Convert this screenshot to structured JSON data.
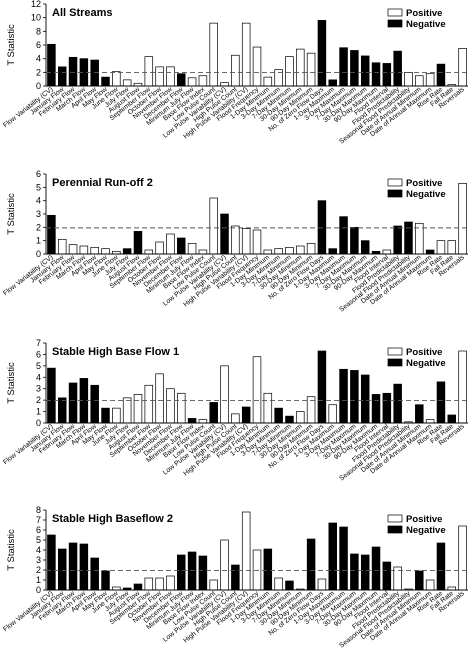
{
  "figure": {
    "ylabel": "T Statistic",
    "legend": {
      "positive": "Positive",
      "negative": "Negative"
    }
  },
  "categories": [
    "Flow Variability (CV)",
    "January Flow",
    "February Flow",
    "March Flow",
    "April Flow",
    "May Flow",
    "June Flow",
    "July Flow",
    "August Flow",
    "September Flow",
    "October Flow",
    "November Flow",
    "December Flow",
    "Minimum July Flow",
    "Base Flow Index",
    "Low Pulse Count",
    "Low Pulse Variability (CV)",
    "High Pulse Count",
    "High Pulse Variability (CV)",
    "Flood Frequency",
    "1-Day Minimum",
    "3-Day Minimum",
    "7-Day Minimum",
    "30-Day Minimum",
    "90-Day Minimum",
    "No. of Zero Flow Days",
    "1-Day Maximum",
    "3-Day Maximum",
    "7-Day Maximum",
    "30-Day Maximum",
    "90-Day Maximum",
    "Flood Interval",
    "Flood Predictability",
    "Seasonal Flood Predictability",
    "Date of Annual Minimum",
    "Date of Annual Maximum",
    "Rise Rate",
    "Fall Rate",
    "Reversals"
  ],
  "chart_data": [
    {
      "type": "bar",
      "title": "All Streams",
      "ylim": [
        0,
        12
      ],
      "yticks": [
        0,
        2,
        4,
        6,
        8,
        10,
        12
      ],
      "threshold": 1.96,
      "values": [
        6.1,
        2.8,
        4.2,
        4.0,
        3.8,
        1.3,
        2.1,
        0.9,
        0.4,
        4.3,
        2.8,
        2.8,
        1.8,
        1.2,
        1.5,
        9.2,
        0.5,
        4.5,
        9.2,
        5.7,
        1.3,
        2.4,
        4.3,
        5.4,
        4.8,
        9.6,
        0.9,
        5.6,
        5.2,
        4.4,
        3.4,
        3.3,
        5.1,
        2.0,
        1.5,
        1.8,
        3.2,
        0.2,
        5.5
      ],
      "signs": [
        "n",
        "n",
        "n",
        "n",
        "n",
        "n",
        "p",
        "p",
        "p",
        "p",
        "p",
        "p",
        "n",
        "p",
        "p",
        "p",
        "p",
        "p",
        "p",
        "p",
        "p",
        "p",
        "p",
        "p",
        "p",
        "n",
        "n",
        "n",
        "n",
        "n",
        "n",
        "n",
        "n",
        "p",
        "p",
        "p",
        "n",
        "p",
        "p"
      ]
    },
    {
      "type": "bar",
      "title": "Perennial Run-off 2",
      "ylim": [
        0,
        6
      ],
      "yticks": [
        0,
        1,
        2,
        3,
        4,
        5,
        6
      ],
      "threshold": 1.96,
      "values": [
        2.9,
        1.1,
        0.7,
        0.6,
        0.5,
        0.4,
        0.2,
        0.4,
        1.7,
        0.3,
        0.9,
        1.5,
        1.2,
        0.8,
        0.3,
        4.2,
        3.0,
        2.1,
        1.9,
        1.8,
        0.3,
        0.4,
        0.5,
        0.6,
        0.8,
        4.0,
        0.4,
        2.8,
        2.0,
        1.0,
        0.2,
        0.3,
        2.1,
        2.4,
        2.3,
        0.3,
        1.0,
        1.0,
        5.3
      ],
      "signs": [
        "n",
        "p",
        "p",
        "p",
        "p",
        "p",
        "p",
        "n",
        "n",
        "p",
        "p",
        "p",
        "n",
        "p",
        "p",
        "p",
        "n",
        "p",
        "p",
        "p",
        "p",
        "p",
        "p",
        "p",
        "p",
        "n",
        "n",
        "n",
        "n",
        "n",
        "n",
        "p",
        "n",
        "n",
        "p",
        "n",
        "p",
        "p",
        "p"
      ]
    },
    {
      "type": "bar",
      "title": "Stable High Base Flow 1",
      "ylim": [
        0,
        7
      ],
      "yticks": [
        0,
        1,
        2,
        3,
        4,
        5,
        6,
        7
      ],
      "threshold": 1.96,
      "values": [
        4.8,
        2.2,
        3.5,
        3.9,
        3.3,
        1.3,
        1.3,
        2.2,
        2.5,
        3.3,
        4.3,
        3.0,
        2.6,
        0.4,
        0.3,
        1.8,
        5.0,
        0.8,
        1.4,
        5.8,
        2.6,
        1.3,
        0.6,
        1.0,
        2.3,
        6.3,
        1.6,
        4.7,
        4.6,
        4.2,
        2.5,
        2.6,
        3.4,
        0.1,
        1.6,
        0.3,
        3.6,
        0.7,
        6.3
      ],
      "signs": [
        "n",
        "n",
        "n",
        "n",
        "n",
        "n",
        "p",
        "p",
        "p",
        "p",
        "p",
        "p",
        "p",
        "n",
        "p",
        "n",
        "p",
        "p",
        "n",
        "p",
        "p",
        "n",
        "n",
        "p",
        "p",
        "n",
        "p",
        "n",
        "n",
        "n",
        "n",
        "n",
        "n",
        "p",
        "n",
        "p",
        "n",
        "n",
        "p"
      ]
    },
    {
      "type": "bar",
      "title": "Stable High Baseflow 2",
      "ylim": [
        0,
        8
      ],
      "yticks": [
        0,
        1,
        2,
        3,
        4,
        5,
        6,
        7,
        8
      ],
      "threshold": 1.96,
      "values": [
        5.5,
        4.1,
        4.7,
        4.6,
        3.2,
        1.9,
        0.3,
        0.2,
        0.6,
        1.2,
        1.2,
        1.4,
        3.5,
        3.8,
        3.4,
        1.0,
        5.0,
        2.5,
        7.8,
        4.0,
        4.1,
        1.2,
        0.9,
        0.1,
        5.1,
        1.1,
        6.7,
        6.3,
        3.6,
        3.5,
        4.3,
        2.8,
        2.3,
        0.1,
        1.9,
        1.0,
        4.7,
        0.3,
        6.4
      ],
      "signs": [
        "n",
        "n",
        "n",
        "n",
        "n",
        "n",
        "p",
        "n",
        "n",
        "p",
        "p",
        "p",
        "n",
        "n",
        "n",
        "p",
        "p",
        "n",
        "p",
        "p",
        "n",
        "p",
        "n",
        "p",
        "n",
        "p",
        "n",
        "n",
        "n",
        "n",
        "n",
        "n",
        "p",
        "p",
        "n",
        "p",
        "n",
        "p",
        "p"
      ]
    }
  ]
}
